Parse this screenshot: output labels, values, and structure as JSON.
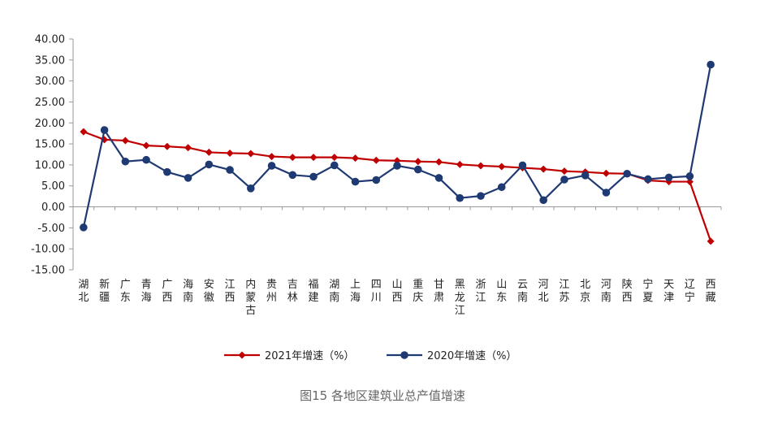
{
  "caption": "图15 各地区建筑业总产值增速",
  "chart_data": {
    "type": "line",
    "ylim": [
      -15,
      40
    ],
    "yticks": [
      "-15.00",
      "-10.00",
      "-5.00",
      "0.00",
      "5.00",
      "10.00",
      "15.00",
      "20.00",
      "25.00",
      "30.00",
      "35.00",
      "40.00"
    ],
    "categories": [
      "湖北",
      "新疆",
      "广东",
      "青海",
      "广西",
      "海南",
      "安徽",
      "江西",
      "内蒙古",
      "贵州",
      "吉林",
      "福建",
      "湖南",
      "上海",
      "四川",
      "山西",
      "重庆",
      "甘肃",
      "黑龙江",
      "浙江",
      "山东",
      "云南",
      "河北",
      "江苏",
      "北京",
      "河南",
      "陕西",
      "宁夏",
      "天津",
      "辽宁",
      "西藏"
    ],
    "series": [
      {
        "name": "2021年增速（%）",
        "color": "#C00000",
        "marker": "diamond",
        "values": [
          17.9,
          16.0,
          15.8,
          14.6,
          14.4,
          14.1,
          13.0,
          12.8,
          12.7,
          12.0,
          11.8,
          11.8,
          11.8,
          11.6,
          11.1,
          11.0,
          10.8,
          10.7,
          10.1,
          9.8,
          9.6,
          9.3,
          9.0,
          8.5,
          8.3,
          8.0,
          7.9,
          6.3,
          6.0,
          6.0,
          -8.2
        ]
      },
      {
        "name": "2020年增速（%）",
        "color": "#1F3A73",
        "marker": "circle",
        "values": [
          -4.9,
          18.3,
          10.8,
          11.2,
          8.3,
          6.9,
          10.1,
          8.8,
          4.4,
          9.8,
          7.6,
          7.2,
          9.9,
          6.0,
          6.4,
          9.8,
          8.9,
          6.9,
          2.1,
          2.6,
          4.7,
          9.9,
          1.6,
          6.5,
          7.5,
          3.4,
          7.9,
          6.6,
          7.0,
          7.3,
          33.9
        ]
      }
    ],
    "grid": false,
    "legend": "bottom"
  }
}
